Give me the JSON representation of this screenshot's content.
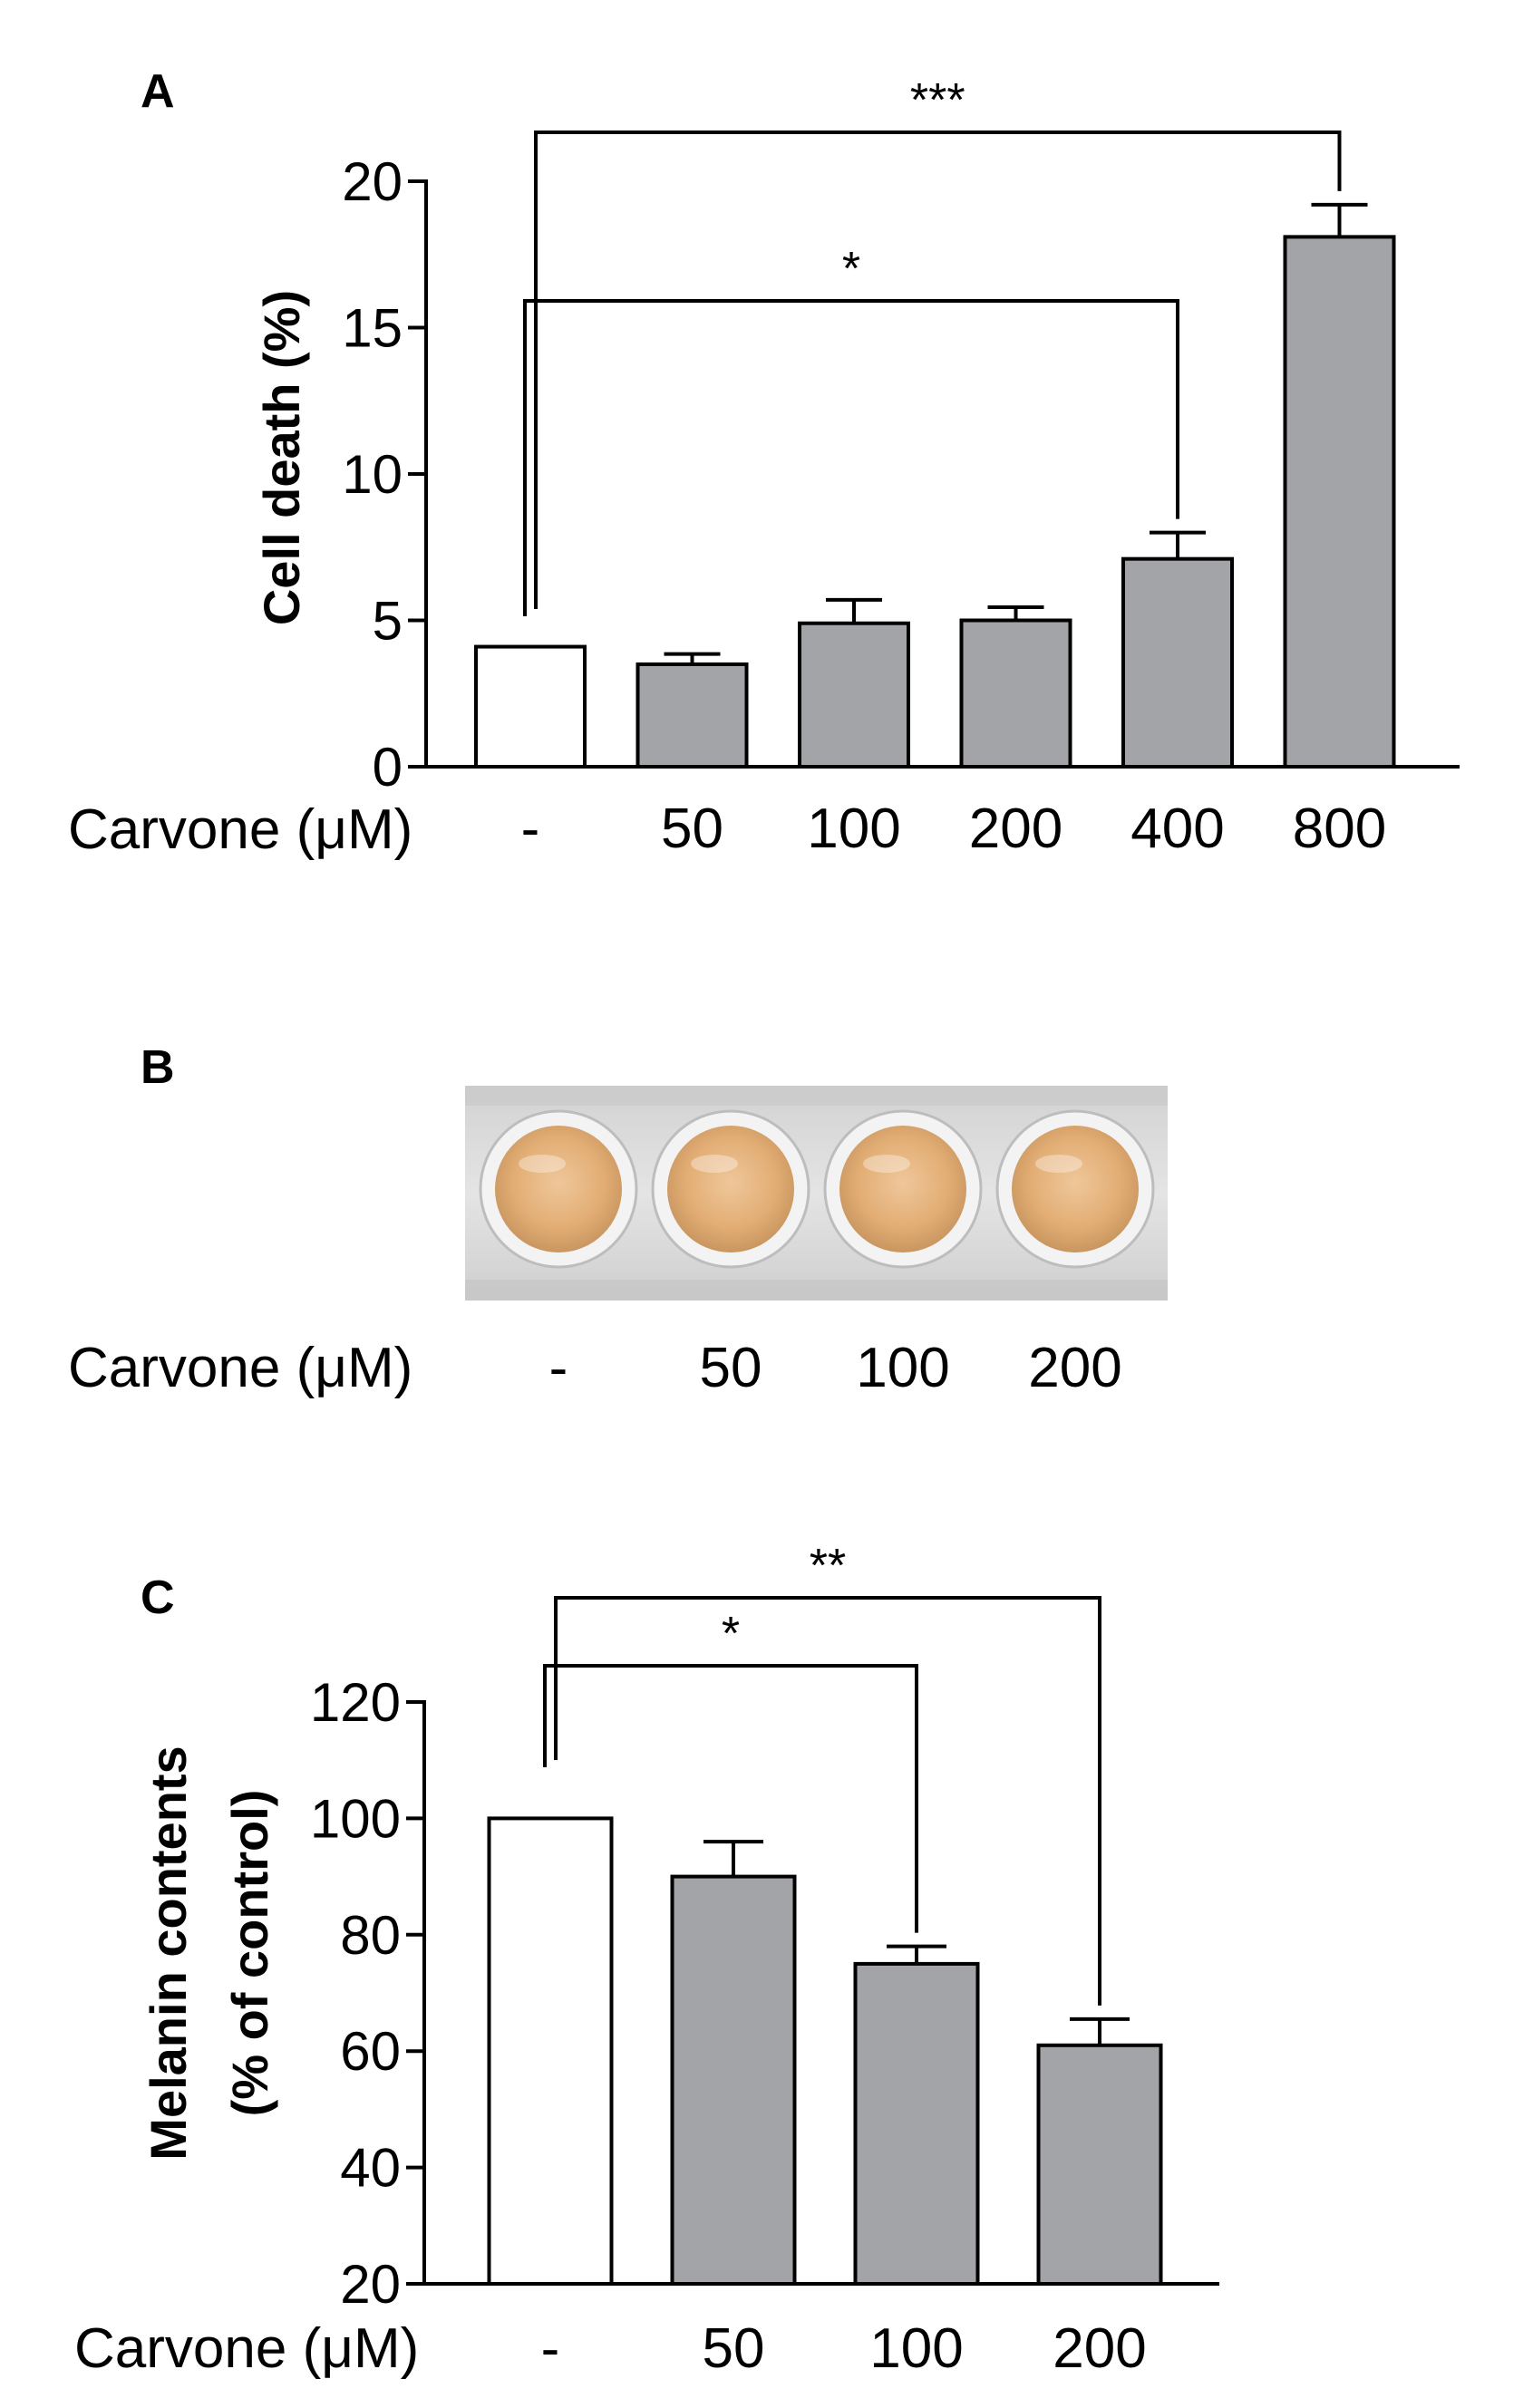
{
  "chart_data": [
    {
      "panel_label": "A",
      "type": "bar",
      "ylabel": "Cell death (%)",
      "xlabel": "Carvone (μM)",
      "categories": [
        "-",
        "50",
        "100",
        "200",
        "400",
        "800"
      ],
      "values": [
        4.1,
        3.5,
        4.9,
        5.0,
        7.1,
        18.1
      ],
      "errors": [
        0,
        0.35,
        0.8,
        0.45,
        0.9,
        1.1
      ],
      "bar_colors": [
        "#ffffff",
        "#a3a4a8",
        "#a3a4a8",
        "#a3a4a8",
        "#a3a4a8",
        "#a3a4a8"
      ],
      "yticks": [
        0,
        5,
        10,
        15,
        20
      ],
      "ylim": [
        0,
        20
      ],
      "significance": [
        {
          "from": 0,
          "to": 4,
          "label": "*"
        },
        {
          "from": 0,
          "to": 5,
          "label": "***"
        }
      ]
    },
    {
      "panel_label": "C",
      "type": "bar",
      "ylabel": [
        "Melanin contents",
        "(% of control)"
      ],
      "xlabel": "Carvone (μM)",
      "categories": [
        "-",
        "50",
        "100",
        "200"
      ],
      "values": [
        100,
        90,
        75,
        61
      ],
      "errors": [
        0,
        6,
        3,
        4.5
      ],
      "bar_colors": [
        "#ffffff",
        "#a3a4a8",
        "#a3a4a8",
        "#a3a4a8"
      ],
      "yticks": [
        20,
        40,
        60,
        80,
        100,
        120
      ],
      "ylim": [
        20,
        120
      ],
      "significance": [
        {
          "from": 0,
          "to": 2,
          "label": "*"
        },
        {
          "from": 0,
          "to": 3,
          "label": "**"
        }
      ]
    }
  ],
  "photo_panel": {
    "panel_label": "B",
    "xlabel": "Carvone (μM)",
    "wells": [
      "-",
      "50",
      "100",
      "200"
    ],
    "plate_color": "#dcdcdc",
    "well_color": "#e2b07a"
  }
}
